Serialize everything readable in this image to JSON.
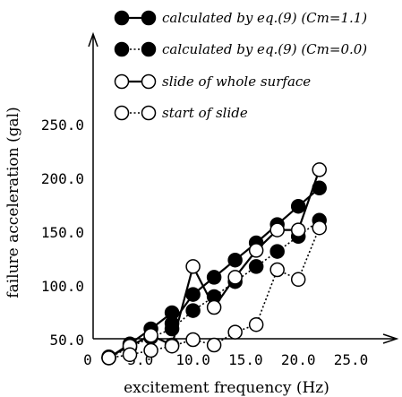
{
  "chart_data": {
    "type": "line",
    "title": "",
    "xlabel": "excitement frequency (Hz)",
    "ylabel": "failure acceleration (gal)",
    "xlim": [
      0,
      25
    ],
    "ylim": [
      20,
      260
    ],
    "x_ticks": [
      "0",
      "5.0",
      "10.0",
      "15.0",
      "20.0",
      "25.0"
    ],
    "y_ticks": [
      "50.0",
      "100.0",
      "150.0",
      "200.0",
      "250.0"
    ],
    "grid": false,
    "legend_position": "top",
    "series": [
      {
        "name": "calculated by eq.(9) (Cm=1.1)",
        "marker": "filled",
        "line": "solid",
        "x": [
          2.0,
          4.0,
          6.0,
          8.0,
          8.0,
          10.0,
          12.0,
          14.0,
          16.0,
          18.0,
          20.0,
          22.0
        ],
        "y": [
          33,
          46,
          60,
          75,
          65,
          92,
          108,
          124,
          140,
          157,
          174,
          191
        ]
      },
      {
        "name": "calculated by eq.(9) (Cm=0.0)",
        "marker": "filled",
        "line": "dotted",
        "x": [
          2.0,
          4.0,
          6.0,
          8.0,
          10.0,
          12.0,
          14.0,
          16.0,
          18.0,
          20.0,
          22.0
        ],
        "y": [
          33,
          43,
          52,
          60,
          77,
          90,
          104,
          118,
          132,
          146,
          161
        ]
      },
      {
        "name": "slide of whole surface",
        "marker": "open",
        "line": "solid",
        "x": [
          2.0,
          4.0,
          6.0,
          8.0,
          10.0,
          12.0,
          14.0,
          16.0,
          18.0,
          20.0,
          22.0
        ],
        "y": [
          34,
          44,
          54,
          45,
          118,
          80,
          108,
          133,
          152,
          152,
          208
        ]
      },
      {
        "name": "start of slide",
        "marker": "open",
        "line": "dotted",
        "x": [
          2.0,
          4.0,
          6.0,
          8.0,
          10.0,
          12.0,
          14.0,
          16.0,
          18.0,
          20.0,
          22.0
        ],
        "y": [
          33,
          36,
          40,
          44,
          50,
          45,
          57,
          64,
          115,
          106,
          154
        ]
      }
    ]
  }
}
